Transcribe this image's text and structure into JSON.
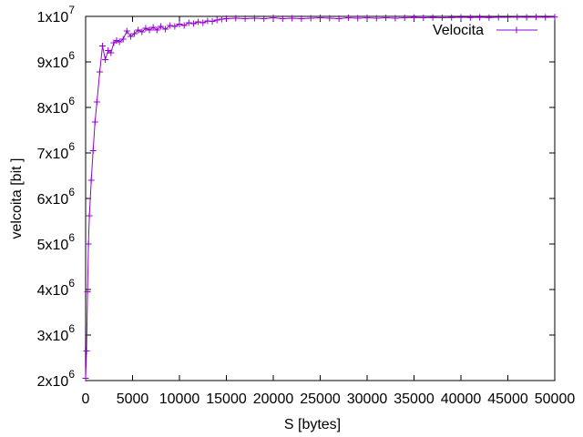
{
  "chart_data": {
    "type": "line",
    "xlabel": "S [bytes]",
    "ylabel": "velcoita [bit   ]",
    "xlim": [
      0,
      50000
    ],
    "ylim": [
      2000000,
      10000000
    ],
    "x_ticks": [
      0,
      5000,
      10000,
      15000,
      20000,
      25000,
      30000,
      35000,
      40000,
      45000,
      50000
    ],
    "x_tick_labels": [
      "0",
      "5000",
      "10000",
      "15000",
      "20000",
      "25000",
      "30000",
      "35000",
      "40000",
      "45000",
      "50000"
    ],
    "y_ticks": [
      {
        "value": 2000000,
        "mantissa": "2x10",
        "exp": "6"
      },
      {
        "value": 3000000,
        "mantissa": "3x10",
        "exp": "6"
      },
      {
        "value": 4000000,
        "mantissa": "4x10",
        "exp": "6"
      },
      {
        "value": 5000000,
        "mantissa": "5x10",
        "exp": "6"
      },
      {
        "value": 6000000,
        "mantissa": "6x10",
        "exp": "6"
      },
      {
        "value": 7000000,
        "mantissa": "7x10",
        "exp": "6"
      },
      {
        "value": 8000000,
        "mantissa": "8x10",
        "exp": "6"
      },
      {
        "value": 9000000,
        "mantissa": "9x10",
        "exp": "6"
      },
      {
        "value": 10000000,
        "mantissa": "1x10",
        "exp": "7"
      }
    ],
    "grid": false,
    "legend_position": "top-right",
    "series": [
      {
        "name": "Velocita",
        "color": "#9400d3",
        "marker": "plus",
        "points": [
          [
            0,
            2050000
          ],
          [
            100,
            2650000
          ],
          [
            200,
            3950000
          ],
          [
            300,
            5000000
          ],
          [
            400,
            5620000
          ],
          [
            600,
            6400000
          ],
          [
            800,
            7050000
          ],
          [
            1000,
            7680000
          ],
          [
            1200,
            8120000
          ],
          [
            1500,
            8780000
          ],
          [
            1800,
            9350000
          ],
          [
            2100,
            9050000
          ],
          [
            2400,
            9250000
          ],
          [
            2700,
            9200000
          ],
          [
            3000,
            9420000
          ],
          [
            3300,
            9470000
          ],
          [
            3600,
            9440000
          ],
          [
            4000,
            9500000
          ],
          [
            4400,
            9680000
          ],
          [
            4800,
            9560000
          ],
          [
            5200,
            9620000
          ],
          [
            5600,
            9700000
          ],
          [
            6000,
            9660000
          ],
          [
            6400,
            9740000
          ],
          [
            6800,
            9700000
          ],
          [
            7200,
            9760000
          ],
          [
            7600,
            9700000
          ],
          [
            8000,
            9780000
          ],
          [
            8500,
            9720000
          ],
          [
            9000,
            9800000
          ],
          [
            9500,
            9780000
          ],
          [
            10000,
            9830000
          ],
          [
            10500,
            9800000
          ],
          [
            11000,
            9860000
          ],
          [
            11500,
            9840000
          ],
          [
            12000,
            9880000
          ],
          [
            12500,
            9860000
          ],
          [
            13000,
            9900000
          ],
          [
            13500,
            9890000
          ],
          [
            14000,
            9920000
          ],
          [
            14500,
            9940000
          ],
          [
            15000,
            9950000
          ],
          [
            16000,
            9960000
          ],
          [
            17000,
            9950000
          ],
          [
            18000,
            9960000
          ],
          [
            19000,
            9950000
          ],
          [
            20000,
            9970000
          ],
          [
            21000,
            9950000
          ],
          [
            22000,
            9960000
          ],
          [
            23000,
            9950000
          ],
          [
            24000,
            9960000
          ],
          [
            25000,
            9970000
          ],
          [
            26000,
            9960000
          ],
          [
            27000,
            9950000
          ],
          [
            28000,
            9970000
          ],
          [
            29000,
            9960000
          ],
          [
            30000,
            9970000
          ],
          [
            31000,
            9960000
          ],
          [
            32000,
            9970000
          ],
          [
            33000,
            9960000
          ],
          [
            34000,
            9970000
          ],
          [
            35000,
            9975000
          ],
          [
            36000,
            9970000
          ],
          [
            37000,
            9975000
          ],
          [
            38000,
            9970000
          ],
          [
            39000,
            9975000
          ],
          [
            40000,
            9980000
          ],
          [
            41000,
            9975000
          ],
          [
            42000,
            9980000
          ],
          [
            43000,
            9975000
          ],
          [
            44000,
            9980000
          ],
          [
            45000,
            9980000
          ],
          [
            46000,
            9985000
          ],
          [
            47000,
            9980000
          ],
          [
            48000,
            9985000
          ],
          [
            49000,
            9980000
          ],
          [
            50000,
            9985000
          ]
        ]
      }
    ]
  }
}
